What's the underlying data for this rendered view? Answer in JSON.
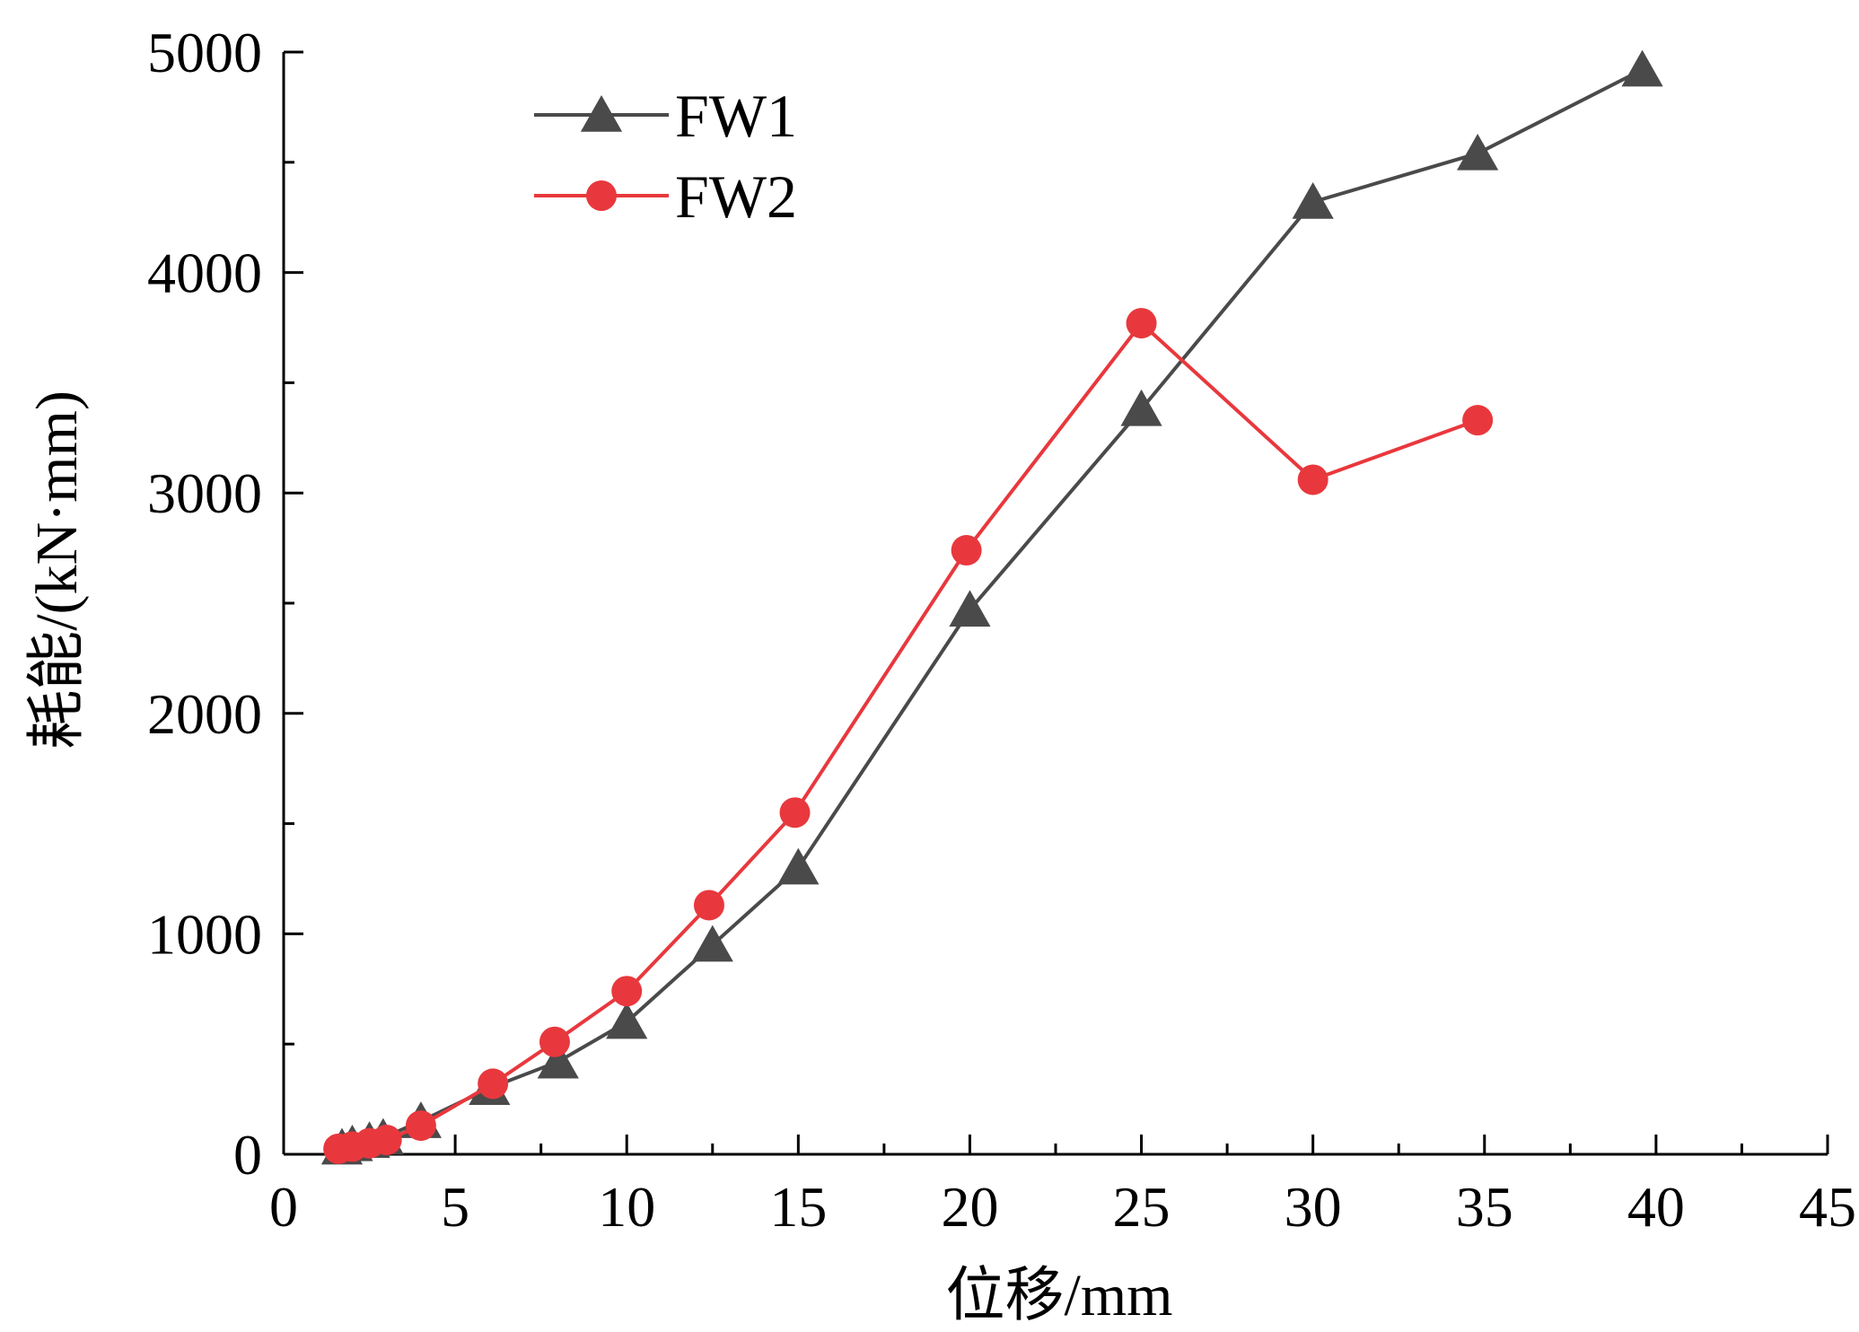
{
  "chart_data": {
    "type": "line",
    "title": "",
    "xlabel": "位移/mm",
    "ylabel": "耗能/(kN·mm)",
    "xlim": [
      0,
      45
    ],
    "ylim": [
      0,
      5000
    ],
    "xticks": [
      "0",
      "5",
      "10",
      "15",
      "20",
      "25",
      "30",
      "35",
      "40",
      "45"
    ],
    "yticks": [
      "0",
      "1000",
      "2000",
      "3000",
      "4000",
      "5000"
    ],
    "grid": false,
    "legend": "top-left",
    "series": [
      {
        "name": "FW1",
        "color": "#4a4a4a",
        "marker": "triangle",
        "x": [
          1.7,
          2.0,
          2.5,
          2.9,
          4.0,
          6.0,
          8.0,
          10.0,
          12.5,
          15.0,
          20.0,
          25.0,
          30.0,
          34.8,
          39.6
        ],
        "y": [
          30,
          45,
          60,
          75,
          150,
          300,
          420,
          600,
          950,
          1300,
          2470,
          3380,
          4320,
          4540,
          4920
        ]
      },
      {
        "name": "FW2",
        "color": "#e8383d",
        "marker": "circle",
        "x": [
          1.6,
          2.0,
          2.5,
          3.0,
          4.0,
          6.1,
          7.9,
          10.0,
          12.4,
          14.9,
          19.9,
          25.0,
          30.0,
          34.8
        ],
        "y": [
          25,
          35,
          50,
          65,
          130,
          320,
          510,
          740,
          1130,
          1550,
          2740,
          3770,
          3060,
          3330
        ]
      }
    ]
  }
}
